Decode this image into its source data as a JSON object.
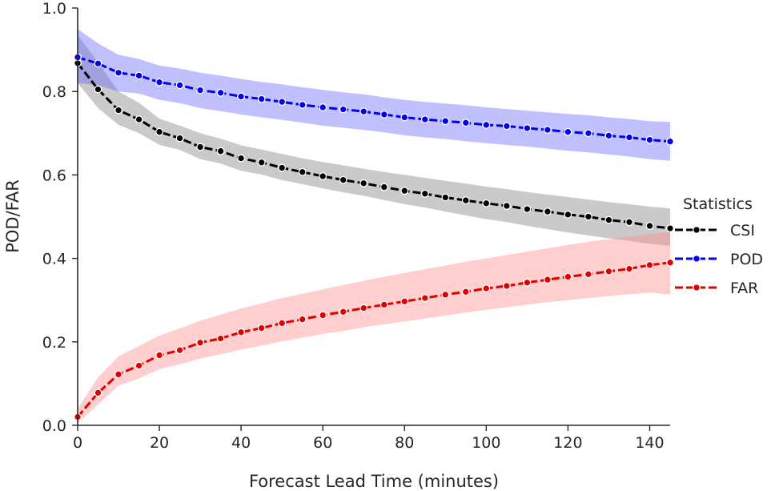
{
  "chart_data": {
    "type": "line",
    "xlabel": "Forecast Lead Time (minutes)",
    "ylabel": "POD/FAR",
    "xlim": [
      0,
      145
    ],
    "ylim": [
      0,
      1.0
    ],
    "xticks": [
      0,
      20,
      40,
      60,
      80,
      100,
      120,
      140
    ],
    "yticks": [
      0.0,
      0.2,
      0.4,
      0.6,
      0.8,
      1.0
    ],
    "xtick_labels": [
      "0",
      "20",
      "40",
      "60",
      "80",
      "100",
      "120",
      "140"
    ],
    "ytick_labels": [
      "0.0",
      "0.2",
      "0.4",
      "0.6",
      "0.8",
      "1.0"
    ],
    "grid": false,
    "legend": {
      "title": "Statistics",
      "placement": "right"
    },
    "x": [
      0,
      5,
      10,
      15,
      20,
      25,
      30,
      35,
      40,
      45,
      50,
      55,
      60,
      65,
      70,
      75,
      80,
      85,
      90,
      95,
      100,
      105,
      110,
      115,
      120,
      125,
      130,
      135,
      140,
      145
    ],
    "series": [
      {
        "name": "CSI",
        "color": "#000000",
        "band_color": "#808080",
        "values": [
          0.868,
          0.805,
          0.755,
          0.733,
          0.703,
          0.688,
          0.667,
          0.657,
          0.64,
          0.63,
          0.617,
          0.607,
          0.597,
          0.588,
          0.58,
          0.571,
          0.562,
          0.555,
          0.546,
          0.539,
          0.532,
          0.526,
          0.518,
          0.512,
          0.505,
          0.5,
          0.492,
          0.487,
          0.478,
          0.472
        ],
        "upper": [
          0.935,
          0.87,
          0.8,
          0.773,
          0.735,
          0.718,
          0.7,
          0.687,
          0.671,
          0.661,
          0.65,
          0.64,
          0.631,
          0.623,
          0.615,
          0.607,
          0.6,
          0.593,
          0.586,
          0.579,
          0.572,
          0.566,
          0.559,
          0.553,
          0.547,
          0.541,
          0.535,
          0.53,
          0.524,
          0.52
        ],
        "lower": [
          0.82,
          0.76,
          0.72,
          0.7,
          0.672,
          0.66,
          0.638,
          0.627,
          0.61,
          0.601,
          0.588,
          0.578,
          0.568,
          0.558,
          0.55,
          0.54,
          0.53,
          0.522,
          0.512,
          0.503,
          0.494,
          0.487,
          0.478,
          0.47,
          0.462,
          0.455,
          0.448,
          0.442,
          0.435,
          0.43
        ]
      },
      {
        "name": "POD",
        "color": "#0000ee",
        "band_color": "#6a6aff",
        "values": [
          0.882,
          0.867,
          0.845,
          0.838,
          0.822,
          0.815,
          0.803,
          0.797,
          0.788,
          0.782,
          0.775,
          0.768,
          0.762,
          0.757,
          0.752,
          0.745,
          0.738,
          0.733,
          0.729,
          0.725,
          0.72,
          0.717,
          0.712,
          0.708,
          0.703,
          0.7,
          0.694,
          0.69,
          0.684,
          0.68
        ],
        "upper": [
          0.95,
          0.915,
          0.888,
          0.878,
          0.862,
          0.855,
          0.845,
          0.838,
          0.83,
          0.823,
          0.817,
          0.81,
          0.804,
          0.798,
          0.793,
          0.786,
          0.78,
          0.775,
          0.771,
          0.767,
          0.762,
          0.758,
          0.754,
          0.75,
          0.746,
          0.743,
          0.738,
          0.734,
          0.729,
          0.727
        ],
        "lower": [
          0.82,
          0.815,
          0.8,
          0.795,
          0.78,
          0.772,
          0.76,
          0.753,
          0.745,
          0.738,
          0.732,
          0.725,
          0.718,
          0.713,
          0.708,
          0.702,
          0.695,
          0.69,
          0.686,
          0.681,
          0.676,
          0.672,
          0.668,
          0.663,
          0.658,
          0.654,
          0.649,
          0.644,
          0.638,
          0.634
        ]
      },
      {
        "name": "FAR",
        "color": "#e00000",
        "band_color": "#ff8a8a",
        "values": [
          0.02,
          0.078,
          0.122,
          0.143,
          0.168,
          0.18,
          0.198,
          0.208,
          0.223,
          0.233,
          0.245,
          0.254,
          0.264,
          0.272,
          0.281,
          0.289,
          0.297,
          0.305,
          0.313,
          0.32,
          0.328,
          0.334,
          0.342,
          0.349,
          0.356,
          0.362,
          0.369,
          0.375,
          0.384,
          0.39
        ],
        "upper": [
          0.04,
          0.115,
          0.165,
          0.19,
          0.215,
          0.232,
          0.251,
          0.265,
          0.28,
          0.292,
          0.305,
          0.315,
          0.326,
          0.336,
          0.346,
          0.356,
          0.365,
          0.374,
          0.383,
          0.392,
          0.4,
          0.408,
          0.416,
          0.424,
          0.432,
          0.44,
          0.446,
          0.452,
          0.458,
          0.465
        ],
        "lower": [
          0.005,
          0.05,
          0.095,
          0.112,
          0.135,
          0.146,
          0.16,
          0.17,
          0.182,
          0.191,
          0.201,
          0.21,
          0.219,
          0.226,
          0.235,
          0.242,
          0.249,
          0.256,
          0.263,
          0.27,
          0.277,
          0.283,
          0.289,
          0.295,
          0.3,
          0.305,
          0.31,
          0.314,
          0.318,
          0.313
        ]
      }
    ]
  }
}
